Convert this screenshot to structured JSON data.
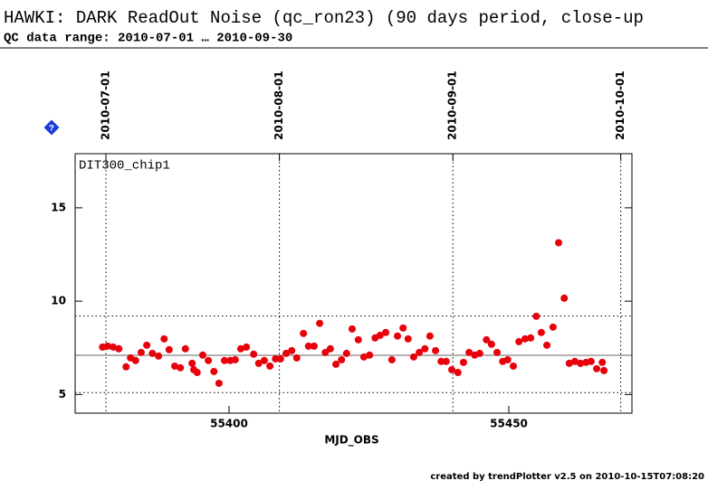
{
  "chart_data": {
    "type": "scatter",
    "title": "HAWKI: DARK ReadOut Noise (qc_ron23) (90 days period, close-up",
    "subtitle": "QC data range: 2010-07-01 … 2010-09-30",
    "panel_label": "DIT300_chip1",
    "x_label": "MJD_OBS",
    "footer": "created by trendPlotter v2.5 on 2010-10-15T07:08:20",
    "xlim": [
      55372.5,
      55472
    ],
    "ylim": [
      4,
      17.9
    ],
    "xticks": [
      55400,
      55450
    ],
    "yticks": [
      5,
      10,
      15
    ],
    "x2ticks": [
      {
        "value": 55378,
        "label": "2010-07-01"
      },
      {
        "value": 55409,
        "label": "2010-08-01"
      },
      {
        "value": 55440,
        "label": "2010-09-01"
      },
      {
        "value": 55470,
        "label": "2010-10-01"
      }
    ],
    "hlines": [
      {
        "value": 7.1,
        "style": "solid"
      },
      {
        "value": 9.2,
        "style": "dotted"
      },
      {
        "value": 5.1,
        "style": "dotted"
      }
    ],
    "grid": true,
    "color": "#e8000b",
    "series": [
      {
        "color": "#e8000b",
        "x": [
          55377.4,
          55378.3,
          55379.3,
          55380.3,
          55381.6,
          55382.4,
          55383.3,
          55384.3,
          55385.3,
          55386.3,
          55387.4,
          55388.4,
          55389.3,
          55390.3,
          55391.3,
          55392.2,
          55393.4,
          55393.7,
          55394.3,
          55395.3,
          55396.3,
          55397.3,
          55398.2,
          55399.2,
          55400.2,
          55401.1,
          55402.1,
          55403.1,
          55404.4,
          55405.3,
          55406.3,
          55407.3,
          55408.3,
          55409.2,
          55410.2,
          55411.2,
          55412.1,
          55413.3,
          55414.2,
          55415.2,
          55416.2,
          55417.2,
          55418.1,
          55419.1,
          55420.1,
          55421.0,
          55422.0,
          55423.1,
          55424.1,
          55425.1,
          55426.1,
          55427.0,
          55428.0,
          55429.1,
          55430.1,
          55431.1,
          55432.0,
          55433.0,
          55434.0,
          55435.0,
          55435.9,
          55436.9,
          55437.9,
          55438.8,
          55439.8,
          55440.9,
          55441.9,
          55442.9,
          55443.9,
          55444.8,
          55446.0,
          55446.9,
          55447.9,
          55448.9,
          55449.8,
          55450.8,
          55451.8,
          55452.9,
          55453.9,
          55454.9,
          55455.8,
          55456.8,
          55457.9,
          55458.9,
          55459.9,
          55460.8,
          55461.8,
          55462.8,
          55463.8,
          55464.7,
          55465.7,
          55466.7,
          55467.0
        ],
        "values": [
          7.54,
          7.59,
          7.54,
          7.45,
          6.48,
          6.96,
          6.82,
          7.25,
          7.64,
          7.2,
          7.06,
          7.98,
          7.4,
          6.52,
          6.43,
          7.45,
          6.67,
          6.33,
          6.18,
          7.11,
          6.82,
          6.23,
          5.6,
          6.82,
          6.82,
          6.86,
          7.45,
          7.54,
          7.16,
          6.67,
          6.82,
          6.52,
          6.91,
          6.91,
          7.2,
          7.35,
          6.96,
          8.27,
          7.59,
          7.59,
          8.81,
          7.25,
          7.45,
          6.62,
          6.86,
          7.2,
          8.51,
          7.93,
          7.01,
          7.11,
          8.03,
          8.17,
          8.32,
          6.86,
          8.13,
          8.56,
          7.98,
          7.01,
          7.25,
          7.45,
          8.13,
          7.35,
          6.77,
          6.77,
          6.33,
          6.18,
          6.72,
          7.25,
          7.11,
          7.2,
          7.93,
          7.69,
          7.25,
          6.77,
          6.86,
          6.52,
          7.83,
          7.98,
          8.03,
          9.19,
          8.32,
          7.64,
          8.61,
          13.13,
          10.16,
          6.67,
          6.77,
          6.67,
          6.72,
          6.77,
          6.38,
          6.72,
          6.28
        ]
      }
    ]
  }
}
